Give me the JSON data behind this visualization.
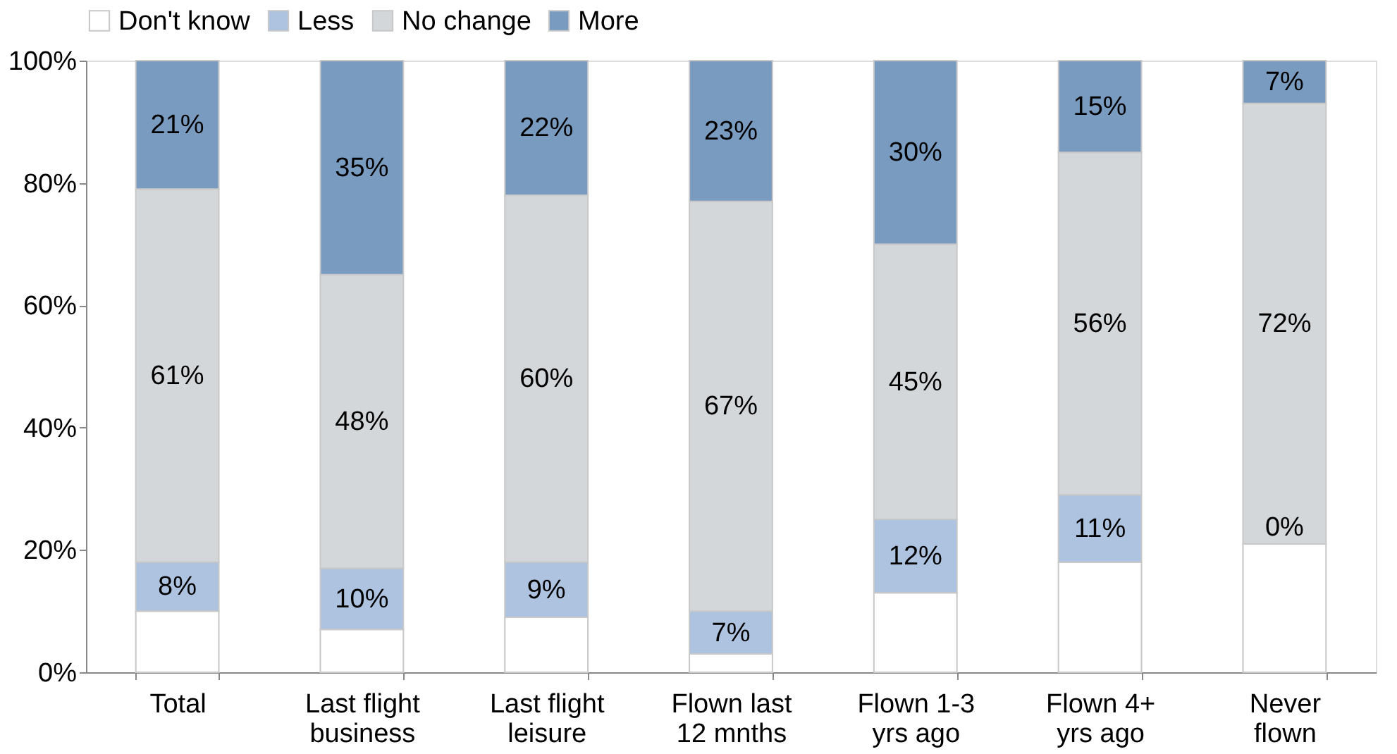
{
  "chart_data": {
    "type": "bar",
    "stacked": true,
    "categories": [
      "Total",
      "Last flight\nbusiness",
      "Last flight\nleisure",
      "Flown last\n12 mnths",
      "Flown 1-3\nyrs ago",
      "Flown 4+\nyrs ago",
      "Never\nflown"
    ],
    "series": [
      {
        "name": "Don't know",
        "color": "#ffffff",
        "values": [
          10,
          7,
          9,
          3,
          13,
          18,
          21
        ],
        "value_labels": [
          null,
          null,
          null,
          null,
          null,
          null,
          null
        ]
      },
      {
        "name": "Less",
        "color": "#adc3df",
        "values": [
          8,
          10,
          9,
          7,
          12,
          11,
          0
        ],
        "value_labels": [
          "8%",
          "10%",
          "9%",
          "7%",
          "12%",
          "11%",
          null
        ]
      },
      {
        "name": "No change",
        "color": "#d3d7da",
        "values": [
          61,
          48,
          60,
          67,
          45,
          56,
          72
        ],
        "value_labels": [
          "61%",
          "48%",
          "60%",
          "67%",
          "45%",
          "56%",
          "72%"
        ]
      },
      {
        "name": "More",
        "color": "#7a9bc0",
        "values": [
          21,
          35,
          22,
          23,
          30,
          15,
          7
        ],
        "value_labels": [
          "21%",
          "35%",
          "22%",
          "23%",
          "30%",
          "15%",
          "7%"
        ]
      }
    ],
    "ylim": [
      0,
      100
    ],
    "yticks": [
      {
        "value": 0,
        "label": "0%"
      },
      {
        "value": 20,
        "label": "20%"
      },
      {
        "value": 40,
        "label": "40%"
      },
      {
        "value": 60,
        "label": "60%"
      },
      {
        "value": 80,
        "label": "80%"
      },
      {
        "value": 100,
        "label": "100%"
      }
    ],
    "grid": false,
    "legend": "top",
    "annotations": [
      {
        "text": "0%",
        "x": "Never\nflown",
        "y": 21
      }
    ]
  }
}
